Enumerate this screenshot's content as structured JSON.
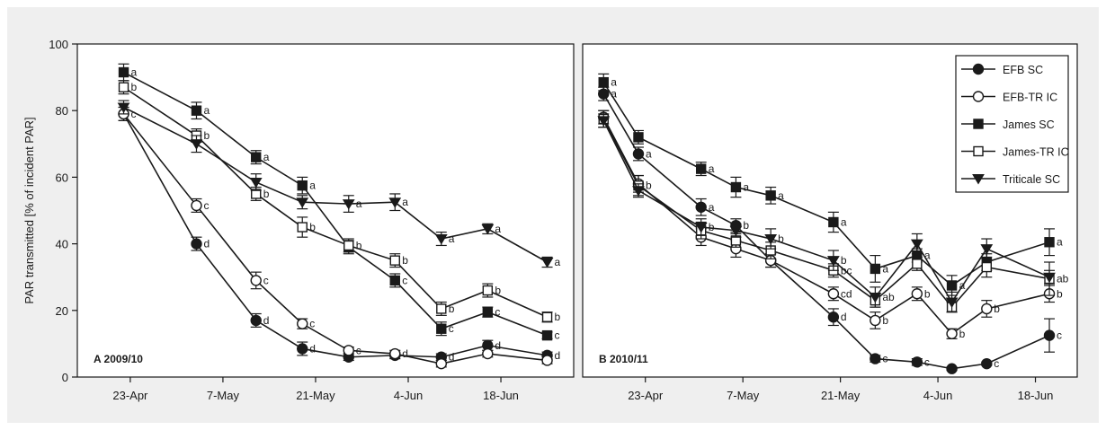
{
  "figure": {
    "background": "#efefef",
    "plot_background": "#ffffff",
    "ink": "#1a1a1a"
  },
  "legend": {
    "entries": [
      {
        "label": "EFB SC",
        "marker": "circle-filled"
      },
      {
        "label": "EFB-TR IC",
        "marker": "circle-open"
      },
      {
        "label": "James SC",
        "marker": "square-filled"
      },
      {
        "label": "James-TR IC",
        "marker": "square-open"
      },
      {
        "label": "Triticale SC",
        "marker": "triangle-down-filled"
      }
    ],
    "placement": "top-right of panel B"
  },
  "chart_data": [
    {
      "type": "line",
      "panel_label": "A 2009/10",
      "ylabel": "PAR transmitted [% of incident PAR]",
      "xlabel": "",
      "ylim": [
        0,
        100
      ],
      "yticks": [
        0,
        20,
        40,
        60,
        80,
        100
      ],
      "x_tick_labels": [
        "23-Apr",
        "7-May",
        "21-May",
        "4-Jun",
        "18-Jun"
      ],
      "x_tick_dates": [
        "2010-04-23",
        "2010-05-07",
        "2010-05-21",
        "2010-06-04",
        "2010-06-18"
      ],
      "xlim": [
        "2010-04-15",
        "2010-06-29"
      ],
      "grid": false,
      "series": [
        {
          "name": "EFB SC",
          "marker": "circle-filled",
          "x": [
            "2010-04-22",
            "2010-05-03",
            "2010-05-12",
            "2010-05-19",
            "2010-05-26",
            "2010-06-02",
            "2010-06-09",
            "2010-06-16",
            "2010-06-25"
          ],
          "y": [
            79,
            40,
            17,
            8.5,
            6,
            6.5,
            6,
            9.5,
            6.5
          ],
          "err": [
            2,
            2,
            2,
            2,
            1,
            1,
            1,
            1.5,
            1
          ],
          "letters": [
            "c",
            "d",
            "d",
            "d",
            "",
            "",
            "d",
            "d",
            "d"
          ]
        },
        {
          "name": "EFB-TR IC",
          "marker": "circle-open",
          "x": [
            "2010-04-22",
            "2010-05-03",
            "2010-05-12",
            "2010-05-19",
            "2010-05-26",
            "2010-06-02",
            "2010-06-09",
            "2010-06-16",
            "2010-06-25"
          ],
          "y": [
            79,
            51.5,
            29,
            16,
            8,
            7,
            4,
            7,
            5
          ],
          "err": [
            2,
            2,
            2.5,
            1.5,
            1,
            1,
            1,
            1,
            1
          ],
          "letters": [
            "",
            "c",
            "c",
            "c",
            "c",
            "d",
            "",
            "",
            ""
          ]
        },
        {
          "name": "James SC",
          "marker": "square-filled",
          "x": [
            "2010-04-22",
            "2010-05-03",
            "2010-05-12",
            "2010-05-19",
            "2010-05-26",
            "2010-06-02",
            "2010-06-09",
            "2010-06-16",
            "2010-06-25"
          ],
          "y": [
            91.5,
            80,
            66,
            57.5,
            39,
            29,
            14.5,
            19.5,
            12.5
          ],
          "err": [
            2.5,
            2.5,
            2,
            2.5,
            2,
            2,
            2,
            1.5,
            1
          ],
          "letters": [
            "a",
            "a",
            "a",
            "a",
            "",
            "c",
            "c",
            "c",
            "c"
          ]
        },
        {
          "name": "James-TR IC",
          "marker": "square-open",
          "x": [
            "2010-04-22",
            "2010-05-03",
            "2010-05-12",
            "2010-05-19",
            "2010-05-26",
            "2010-06-02",
            "2010-06-09",
            "2010-06-16",
            "2010-06-25"
          ],
          "y": [
            87,
            72.5,
            55,
            45,
            39.5,
            35,
            20.5,
            26,
            18
          ],
          "err": [
            2,
            2,
            2,
            3,
            2,
            2,
            2,
            2,
            1.5
          ],
          "letters": [
            "b",
            "b",
            "b",
            "b",
            "b",
            "b",
            "b",
            "b",
            "b"
          ]
        },
        {
          "name": "Triticale SC",
          "marker": "triangle-down-filled",
          "x": [
            "2010-04-22",
            "2010-05-03",
            "2010-05-12",
            "2010-05-19",
            "2010-05-26",
            "2010-06-02",
            "2010-06-09",
            "2010-06-16",
            "2010-06-25"
          ],
          "y": [
            81,
            70,
            58.5,
            52.5,
            52,
            52.5,
            41.5,
            44.5,
            34.5
          ],
          "err": [
            2,
            2.5,
            2.5,
            2,
            2.5,
            2.5,
            2,
            1.5,
            1.5
          ],
          "letters": [
            "",
            "",
            "",
            "",
            "a",
            "a",
            "a",
            "a",
            "a"
          ]
        }
      ]
    },
    {
      "type": "line",
      "panel_label": "B 2010/11",
      "ylabel": "",
      "xlabel": "",
      "ylim": [
        0,
        100
      ],
      "x_tick_labels": [
        "23-Apr",
        "7-May",
        "21-May",
        "4-Jun",
        "18-Jun"
      ],
      "x_tick_dates": [
        "2011-04-23",
        "2011-05-07",
        "2011-05-21",
        "2011-06-04",
        "2011-06-18"
      ],
      "xlim": [
        "2011-04-14",
        "2011-06-24"
      ],
      "grid": false,
      "series": [
        {
          "name": "EFB SC",
          "marker": "circle-filled",
          "x": [
            "2011-04-17",
            "2011-04-22",
            "2011-05-01",
            "2011-05-06",
            "2011-05-11",
            "2011-05-20",
            "2011-05-26",
            "2011-06-01",
            "2011-06-06",
            "2011-06-11",
            "2011-06-20"
          ],
          "y": [
            85,
            67,
            51,
            45.5,
            35,
            18,
            5.5,
            4.5,
            2.5,
            4,
            12.5
          ],
          "err": [
            2,
            2,
            2.5,
            2,
            2,
            2.5,
            1,
            1,
            0.5,
            0.5,
            5
          ],
          "letters": [
            "a",
            "a",
            "a",
            "b",
            "",
            "d",
            "c",
            "c",
            "",
            "c",
            "c"
          ]
        },
        {
          "name": "EFB-TR IC",
          "marker": "circle-open",
          "x": [
            "2011-04-17",
            "2011-04-22",
            "2011-05-01",
            "2011-05-06",
            "2011-05-11",
            "2011-05-20",
            "2011-05-26",
            "2011-06-01",
            "2011-06-06",
            "2011-06-11",
            "2011-06-20"
          ],
          "y": [
            78,
            58,
            42,
            38.5,
            35,
            25,
            17,
            25,
            13,
            20.5,
            25
          ],
          "err": [
            2,
            2.5,
            2.5,
            2.5,
            2,
            2,
            2.5,
            2,
            1.5,
            2.5,
            2.5
          ],
          "letters": [
            "",
            "",
            "",
            "",
            "",
            "cd",
            "b",
            "b",
            "b",
            "b",
            "b"
          ]
        },
        {
          "name": "James SC",
          "marker": "square-filled",
          "x": [
            "2011-04-17",
            "2011-04-22",
            "2011-05-01",
            "2011-05-06",
            "2011-05-11",
            "2011-05-20",
            "2011-05-26",
            "2011-06-01",
            "2011-06-06",
            "2011-06-11",
            "2011-06-20"
          ],
          "y": [
            88.5,
            72,
            62.5,
            57,
            54.5,
            46.5,
            32.5,
            36.5,
            27.5,
            34.5,
            40.5
          ],
          "err": [
            2.5,
            2,
            2,
            3,
            2.5,
            3,
            4,
            2,
            3,
            2.5,
            4
          ],
          "letters": [
            "a",
            "",
            "a",
            "a",
            "a",
            "a",
            "a",
            "a",
            "a",
            "",
            "a"
          ]
        },
        {
          "name": "James-TR IC",
          "marker": "square-open",
          "x": [
            "2011-04-17",
            "2011-04-22",
            "2011-05-01",
            "2011-05-06",
            "2011-05-11",
            "2011-05-20",
            "2011-05-26",
            "2011-06-01",
            "2011-06-06",
            "2011-06-11",
            "2011-06-20"
          ],
          "y": [
            77.5,
            57.5,
            44,
            41,
            38,
            32,
            23,
            34,
            21,
            33,
            29.5
          ],
          "err": [
            2.5,
            3,
            2.5,
            2,
            2.5,
            2,
            2,
            2,
            1.5,
            3,
            5
          ],
          "letters": [
            "",
            "b",
            "",
            "",
            "",
            "bc",
            "",
            "",
            "",
            "",
            "ab"
          ]
        },
        {
          "name": "Triticale SC",
          "marker": "triangle-down-filled",
          "x": [
            "2011-04-17",
            "2011-04-22",
            "2011-05-01",
            "2011-05-06",
            "2011-05-11",
            "2011-05-20",
            "2011-05-26",
            "2011-06-01",
            "2011-06-06",
            "2011-06-11",
            "2011-06-20"
          ],
          "y": [
            77,
            56,
            45,
            44,
            41.5,
            35,
            24,
            40,
            22.5,
            38.5,
            30
          ],
          "err": [
            2,
            2,
            2.5,
            2,
            3,
            3,
            3,
            3,
            3,
            3,
            2
          ],
          "letters": [
            "",
            "",
            "b",
            "",
            "b",
            "b",
            "ab",
            "",
            "",
            "",
            ""
          ]
        }
      ]
    }
  ]
}
